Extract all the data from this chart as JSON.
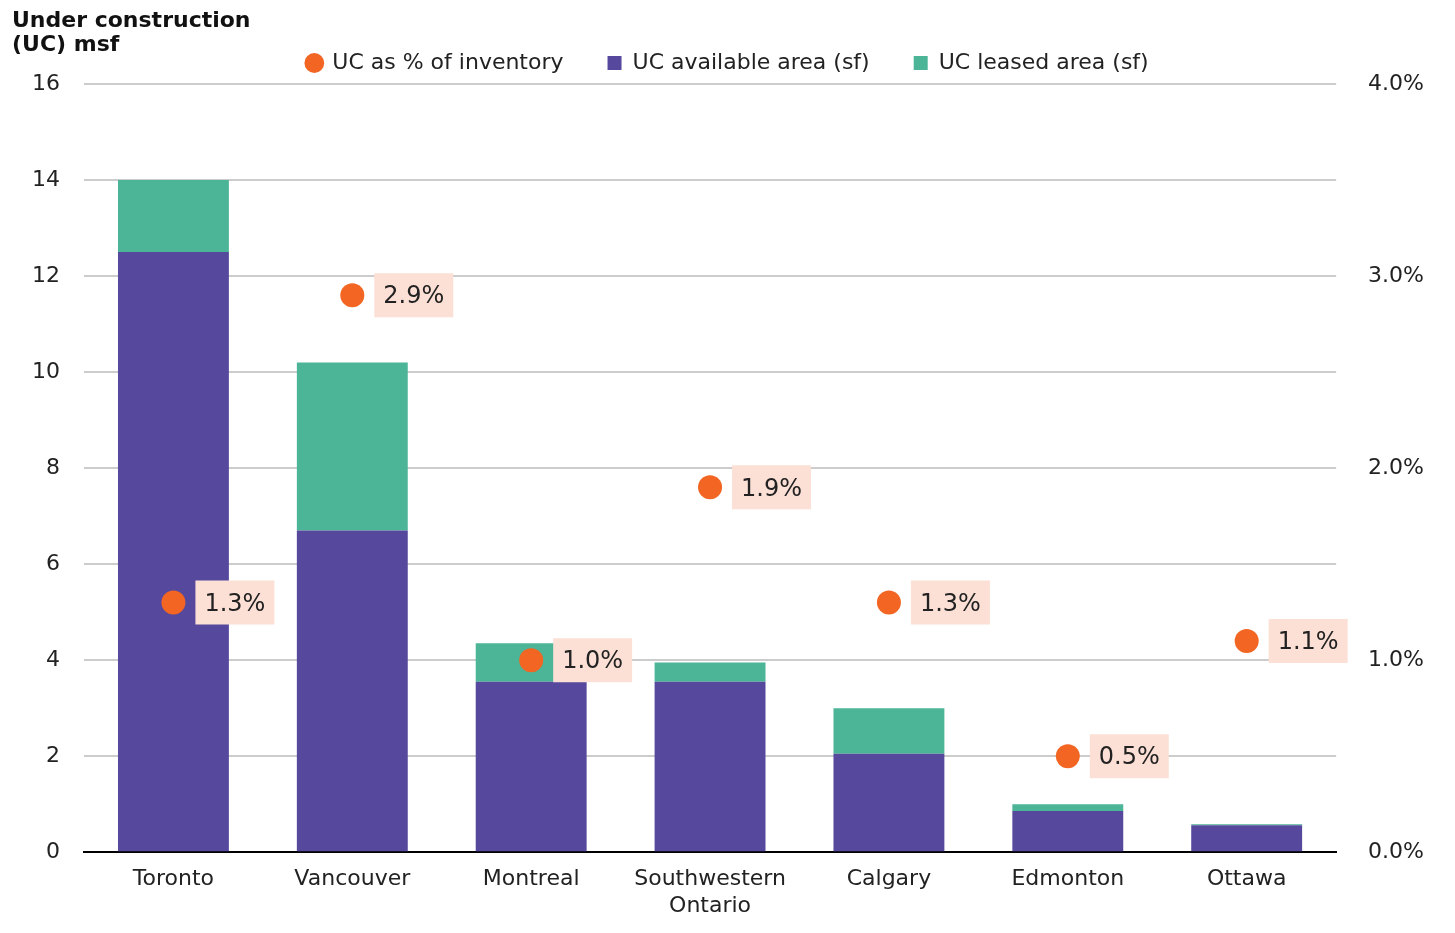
{
  "chart_data": {
    "type": "bar",
    "ylabel": "Under construction (UC) msf",
    "stacked": true,
    "categories": [
      "Toronto",
      "Vancouver",
      "Montreal",
      "Southwestern Ontario",
      "Calgary",
      "Edmonton",
      "Ottawa"
    ],
    "series": [
      {
        "name": "UC available area (sf)",
        "color": "#55489d",
        "values": [
          12.5,
          6.7,
          3.55,
          3.55,
          2.05,
          0.86,
          0.56
        ]
      },
      {
        "name": "UC leased area (sf)",
        "color": "#4db597",
        "values": [
          1.5,
          3.5,
          0.8,
          0.4,
          0.95,
          0.14,
          0.02
        ]
      },
      {
        "name": "UC as % of inventory",
        "type": "scatter",
        "axis": "y2",
        "color": "#f26522",
        "values": [
          1.3,
          2.9,
          1.0,
          1.9,
          1.3,
          0.5,
          1.1
        ],
        "value_labels": [
          "1.3%",
          "2.9%",
          "1.0%",
          "1.9%",
          "1.3%",
          "0.5%",
          "1.1%"
        ]
      }
    ],
    "ylim": [
      0,
      16
    ],
    "yticks": [
      0,
      2,
      4,
      6,
      8,
      10,
      12,
      14,
      16
    ],
    "y2lim": [
      0,
      4
    ],
    "y2ticks": [
      {
        "value": 0,
        "label": "0.0%"
      },
      {
        "value": 1,
        "label": "1.0%"
      },
      {
        "value": 2,
        "label": "2.0%"
      },
      {
        "value": 3,
        "label": "3.0%"
      },
      {
        "value": 4,
        "label": "4.0%"
      }
    ],
    "grid": "y",
    "legend": "top",
    "marker": "circle"
  }
}
